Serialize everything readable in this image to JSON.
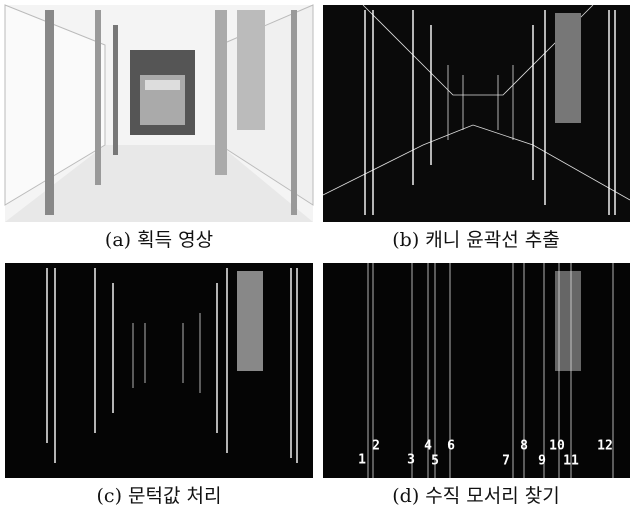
{
  "figure": {
    "panels": [
      {
        "caption": "(a) 획득 영상"
      },
      {
        "caption": "(b) 캐니 윤곽선 추출"
      },
      {
        "caption": "(c) 문턱값 처리"
      },
      {
        "caption": "(d) 수직 모서리 찾기",
        "edge_labels": [
          "1",
          "2",
          "3",
          "4",
          "5",
          "6",
          "7",
          "8",
          "9",
          "10",
          "11",
          "12"
        ]
      }
    ]
  }
}
